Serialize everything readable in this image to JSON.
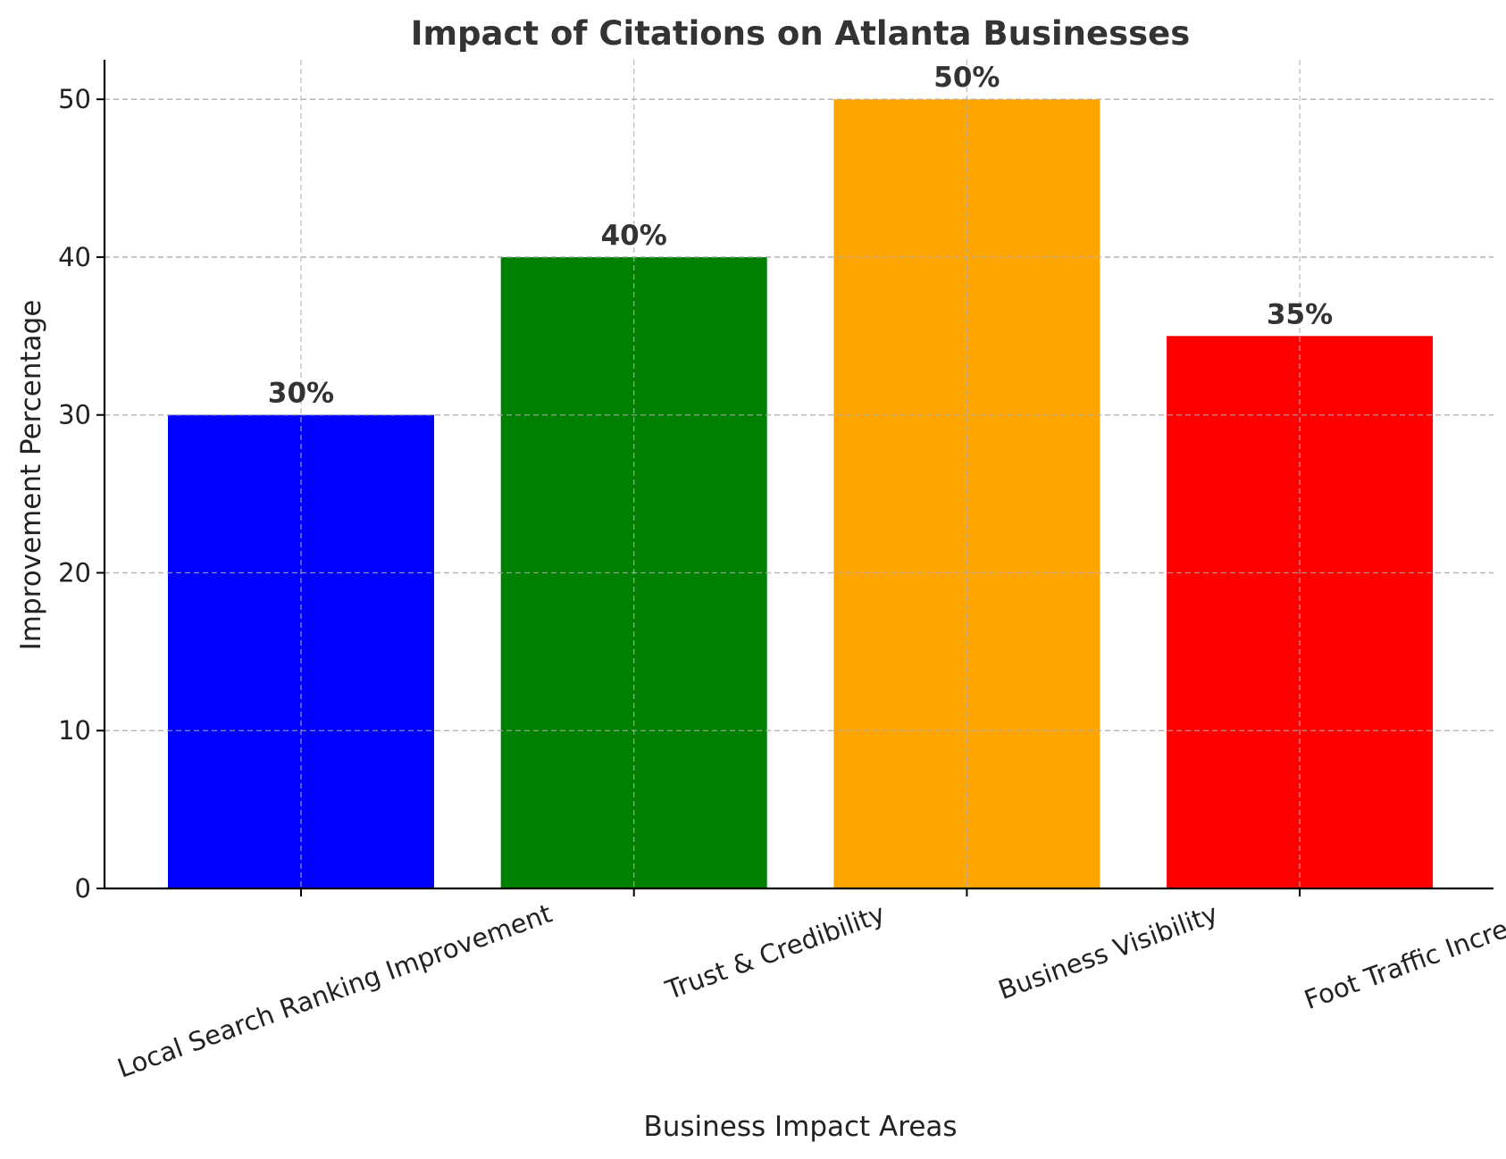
{
  "chart_data": {
    "type": "bar",
    "title": "Impact of Citations on Atlanta Businesses",
    "xlabel": "Business Impact Areas",
    "ylabel": "Improvement Percentage",
    "categories": [
      "Local Search Ranking Improvement",
      "Trust & Credibility",
      "Business Visibility",
      "Foot Traffic Increase"
    ],
    "values": [
      30,
      40,
      50,
      35
    ],
    "value_labels": [
      "30%",
      "40%",
      "50%",
      "35%"
    ],
    "colors": [
      "#0000ff",
      "#008000",
      "#ffa500",
      "#ff0000"
    ],
    "ylim": [
      0,
      52.5
    ],
    "yticks": [
      0,
      10,
      20,
      30,
      40,
      50
    ],
    "grid": true,
    "legend": false
  }
}
